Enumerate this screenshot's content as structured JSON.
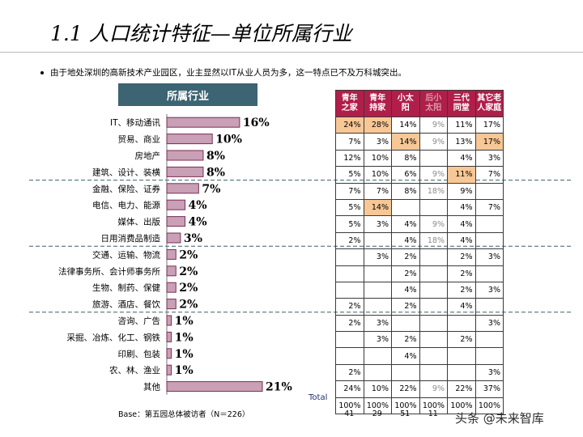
{
  "title": "1.1 人口统计特征—单位所属行业",
  "bullet": "由于地处深圳的高新技术产业园区，业主显然以IT从业人员为多，这一特点已不及万科城突出。",
  "chart_header": "所属行业",
  "chart_data": {
    "type": "bar",
    "orientation": "horizontal",
    "title": "所属行业",
    "categories": [
      "IT、移动通讯",
      "贸易、商业",
      "房地产",
      "建筑、设计、装横",
      "金融、保险、证券",
      "电信、电力、能源",
      "媒体、出版",
      "日用消费品制造",
      "交通、运输、物流",
      "法律事务所、会计师事务所",
      "生物、制药、保健",
      "旅游、酒店、餐饮",
      "咨询、广告",
      "采掘、冶炼、化工、钢铁",
      "印刷、包装",
      "农、林、渔业",
      "其他"
    ],
    "values": [
      16,
      10,
      8,
      8,
      7,
      4,
      4,
      3,
      2,
      2,
      2,
      2,
      1,
      1,
      1,
      1,
      21
    ],
    "value_labels": [
      "16%",
      "10%",
      "8%",
      "8%",
      "7%",
      "4%",
      "4%",
      "3%",
      "2%",
      "2%",
      "2%",
      "2%",
      "1%",
      "1%",
      "1%",
      "1%",
      "21%"
    ],
    "xlim": [
      0,
      21
    ],
    "bar_color": "#c9a0b6",
    "bar_edge_color": "#7a2e53",
    "separator_after_rows": [
      3,
      7,
      11
    ]
  },
  "table": {
    "columns": [
      {
        "label": "青年\n之家",
        "dim": false
      },
      {
        "label": "青年\n持家",
        "dim": false
      },
      {
        "label": "小太\n阳",
        "dim": false
      },
      {
        "label": "后小\n太阳",
        "dim": true
      },
      {
        "label": "三代\n同堂",
        "dim": false
      },
      {
        "label": "其它老\n人家庭",
        "dim": false
      }
    ],
    "rows": [
      [
        "24%",
        "28%",
        "14%",
        "9%",
        "11%",
        "17%"
      ],
      [
        "7%",
        "3%",
        "14%",
        "9%",
        "13%",
        "17%"
      ],
      [
        "12%",
        "10%",
        "8%",
        "",
        "4%",
        "3%"
      ],
      [
        "5%",
        "10%",
        "6%",
        "9%",
        "11%",
        "7%"
      ],
      [
        "7%",
        "7%",
        "8%",
        "18%",
        "9%",
        ""
      ],
      [
        "5%",
        "14%",
        "",
        "",
        "4%",
        "7%"
      ],
      [
        "5%",
        "3%",
        "4%",
        "9%",
        "4%",
        ""
      ],
      [
        "2%",
        "",
        "4%",
        "18%",
        "4%",
        ""
      ],
      [
        "",
        "3%",
        "2%",
        "",
        "2%",
        "3%"
      ],
      [
        "",
        "",
        "2%",
        "",
        "2%",
        ""
      ],
      [
        "",
        "",
        "4%",
        "",
        "2%",
        "3%"
      ],
      [
        "2%",
        "",
        "2%",
        "",
        "4%",
        ""
      ],
      [
        "2%",
        "3%",
        "",
        "",
        "",
        "3%"
      ],
      [
        "",
        "3%",
        "2%",
        "",
        "2%",
        ""
      ],
      [
        "",
        "",
        "4%",
        "",
        "",
        ""
      ],
      [
        "2%",
        "",
        "",
        "",
        "",
        "3%"
      ],
      [
        "24%",
        "10%",
        "22%",
        "9%",
        "22%",
        "37%"
      ]
    ],
    "highlights": [
      [
        0,
        0
      ],
      [
        0,
        1
      ],
      [
        1,
        2
      ],
      [
        1,
        5
      ],
      [
        3,
        4
      ],
      [
        5,
        1
      ]
    ],
    "total_label": "Total",
    "total_row": [
      "100%",
      "100%",
      "100%",
      "100%",
      "100%",
      "100%"
    ],
    "counts": [
      "41",
      "29",
      "51",
      "11",
      "",
      ""
    ]
  },
  "base_note": "Base：第五园总体被访者（N＝226）",
  "watermark": "头条 @未来智库"
}
